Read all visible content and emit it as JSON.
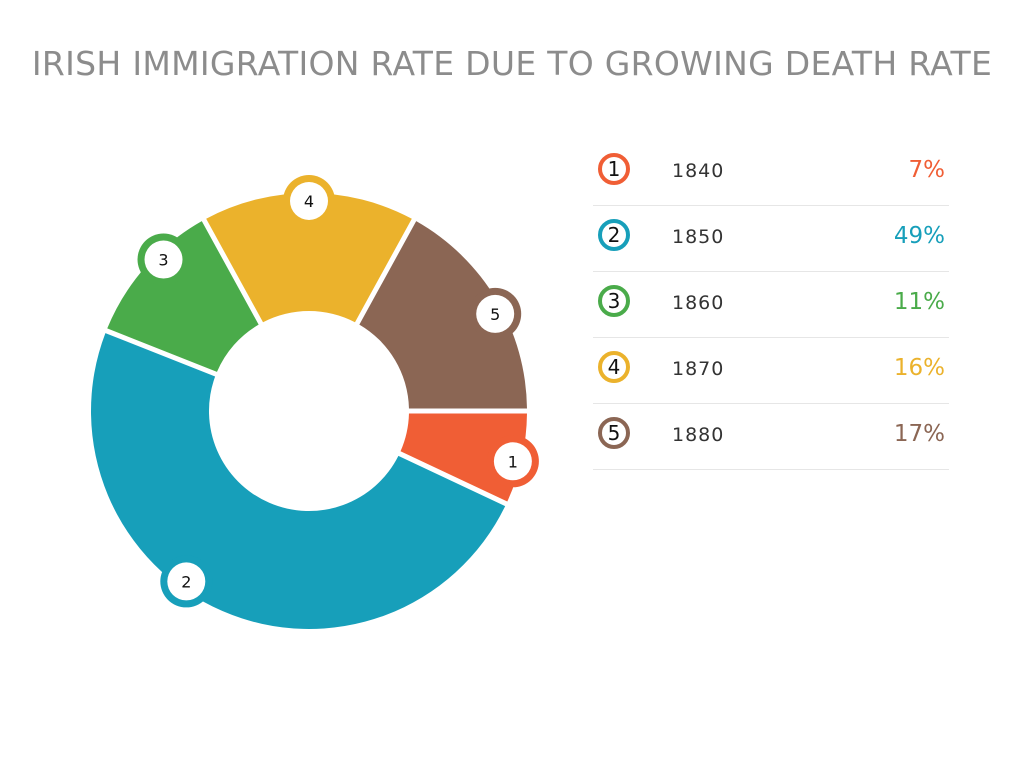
{
  "chart_data": {
    "type": "pie",
    "style": "donut",
    "title": "IRISH IMMIGRATION RATE DUE TO GROWING DEATH RATE",
    "categories": [
      "1840",
      "1850",
      "1860",
      "1870",
      "1880"
    ],
    "values": [
      7,
      49,
      11,
      16,
      17
    ],
    "value_suffix": "%",
    "markers": [
      "1",
      "2",
      "3",
      "4",
      "5"
    ],
    "colors": [
      "#f05e35",
      "#179fba",
      "#4aab4a",
      "#ebb22c",
      "#8b6654"
    ],
    "legend": "right"
  }
}
